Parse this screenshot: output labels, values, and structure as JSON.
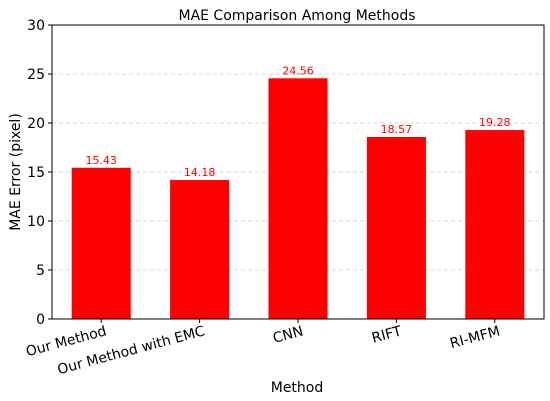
{
  "chart_data": {
    "type": "bar",
    "title": "MAE Comparison Among Methods",
    "xlabel": "Method",
    "ylabel": "MAE Error (pixel)",
    "categories": [
      "Our Method",
      "Our Method with EMC",
      "CNN",
      "RIFT",
      "RI-MFM"
    ],
    "values": [
      15.43,
      14.18,
      24.56,
      18.57,
      19.28
    ],
    "value_labels": [
      "15.43",
      "14.18",
      "24.56",
      "18.57",
      "19.28"
    ],
    "ylim": [
      0,
      30
    ],
    "yticks": [
      0,
      5,
      10,
      15,
      20,
      25,
      30
    ],
    "grid": "y-dashed",
    "legend": "none",
    "bar_color": "#ff0000",
    "label_color": "#ff0000"
  }
}
